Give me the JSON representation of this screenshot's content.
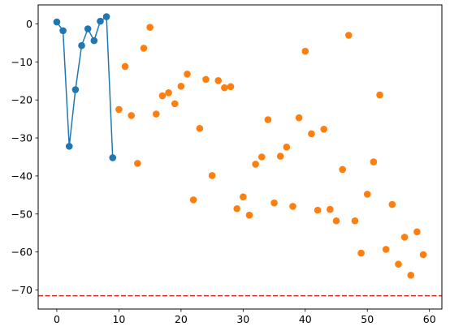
{
  "chart_data": {
    "type": "scatter",
    "title": "",
    "xlabel": "",
    "ylabel": "",
    "xlim": [
      -3,
      62
    ],
    "ylim": [
      -75,
      5
    ],
    "xticks": [
      0,
      10,
      20,
      30,
      40,
      50,
      60
    ],
    "yticks": [
      0,
      -10,
      -20,
      -30,
      -40,
      -50,
      -60,
      -70
    ],
    "grid": false,
    "legend": "none",
    "series": [
      {
        "kind": "line-with-markers",
        "color": "#1f77b4",
        "x": [
          0,
          1,
          2,
          3,
          4,
          5,
          6,
          7,
          8,
          9
        ],
        "y": [
          0.5,
          -1.8,
          -32.2,
          -17.3,
          -5.7,
          -1.3,
          -4.4,
          0.7,
          1.9,
          -35.2
        ]
      },
      {
        "kind": "scatter",
        "color": "#ff7f0e",
        "x": [
          10,
          11,
          12,
          13,
          14,
          15,
          16,
          17,
          18,
          19,
          20,
          21,
          22,
          23,
          24,
          25,
          26,
          27,
          28,
          29,
          30,
          31,
          32,
          33,
          34,
          35,
          36,
          37,
          38,
          39,
          40,
          41,
          42,
          43,
          44,
          45,
          46,
          47,
          48,
          49,
          50,
          51,
          52,
          53,
          54,
          55,
          56,
          57,
          58,
          59
        ],
        "y": [
          -22.5,
          -11.2,
          -24.1,
          -36.7,
          -6.4,
          -0.9,
          -23.7,
          -18.9,
          -18.1,
          -21.0,
          -16.4,
          -13.2,
          -46.3,
          -27.5,
          -14.6,
          -39.9,
          -14.9,
          -16.8,
          -16.5,
          -48.6,
          -45.5,
          -50.3,
          -36.9,
          -35.0,
          -25.2,
          -47.1,
          -34.8,
          -32.4,
          -48.0,
          -24.7,
          -7.2,
          -28.9,
          -49.0,
          -27.7,
          -48.8,
          -51.8,
          -38.3,
          -3.0,
          -51.8,
          -60.3,
          -44.8,
          -36.3,
          -18.7,
          -59.3,
          -47.5,
          -63.2,
          -56.1,
          -66.1,
          -54.7,
          -60.7
        ]
      }
    ],
    "reference_line": {
      "orientation": "horizontal",
      "y": -71.5,
      "color": "#d62728",
      "style": "dashed"
    }
  }
}
